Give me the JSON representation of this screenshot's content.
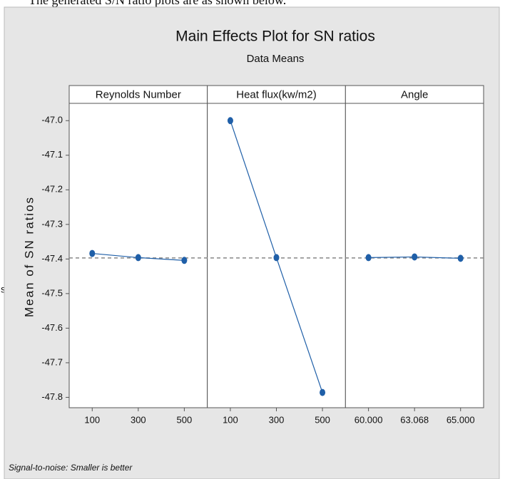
{
  "caption": "The generated S/N ratio plots are as shown below.",
  "side_fragment": "s",
  "chart_data": {
    "type": "line",
    "title": "Main Effects Plot for SN ratios",
    "subtitle": "Data Means",
    "y_label": "Mean of SN ratios",
    "footnote": "Signal-to-noise: Smaller is better",
    "color": "#1f5fa8",
    "reference_line": -47.397,
    "ylim": [
      -47.83,
      -46.95
    ],
    "yticks": [
      {
        "value": -47.0,
        "label": "-47.0"
      },
      {
        "value": -47.1,
        "label": "-47.1"
      },
      {
        "value": -47.2,
        "label": "-47.2"
      },
      {
        "value": -47.3,
        "label": "-47.3"
      },
      {
        "value": -47.4,
        "label": "-47.4"
      },
      {
        "value": -47.5,
        "label": "-47.5"
      },
      {
        "value": -47.6,
        "label": "-47.6"
      },
      {
        "value": -47.7,
        "label": "-47.7"
      },
      {
        "value": -47.8,
        "label": "-47.8"
      }
    ],
    "panels": [
      {
        "name": "Reynolds Number",
        "categories": [
          "100",
          "300",
          "500"
        ],
        "values": [
          -47.384,
          -47.396,
          -47.404
        ]
      },
      {
        "name": "Heat flux(kw/m2)",
        "categories": [
          "100",
          "300",
          "500"
        ],
        "values": [
          -47.0,
          -47.396,
          -47.786
        ]
      },
      {
        "name": "Angle",
        "categories": [
          "60.000",
          "63.068",
          "65.000"
        ],
        "values": [
          -47.396,
          -47.394,
          -47.398
        ]
      }
    ]
  }
}
